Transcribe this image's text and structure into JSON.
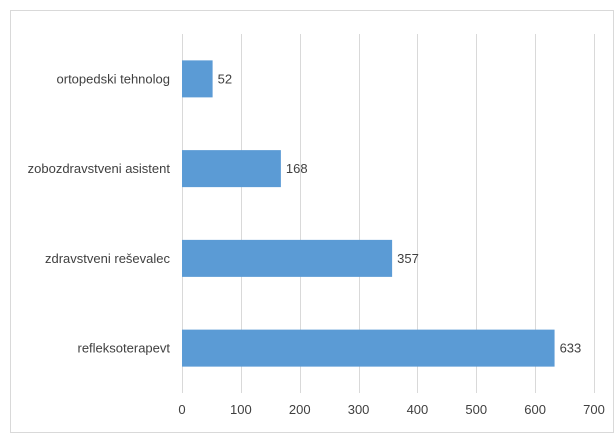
{
  "chart_data": {
    "type": "bar",
    "orientation": "horizontal",
    "categories": [
      "ortopedski tehnolog",
      "zobozdravstveni asistent",
      "zdravstveni reševalec",
      "refleksoterapevt"
    ],
    "values": [
      52,
      168,
      357,
      633
    ],
    "xlim": [
      0,
      700
    ],
    "xticks": [
      0,
      100,
      200,
      300,
      400,
      500,
      600,
      700
    ],
    "tick_labels": [
      "0",
      "100",
      "200",
      "300",
      "400",
      "500",
      "600",
      "700"
    ],
    "grid": "vertical",
    "data_labels": true,
    "title": "",
    "xlabel": "",
    "ylabel": "",
    "colors": {
      "bar": "#5b9bd5",
      "grid": "#d9d9d9",
      "text": "#404040"
    }
  }
}
